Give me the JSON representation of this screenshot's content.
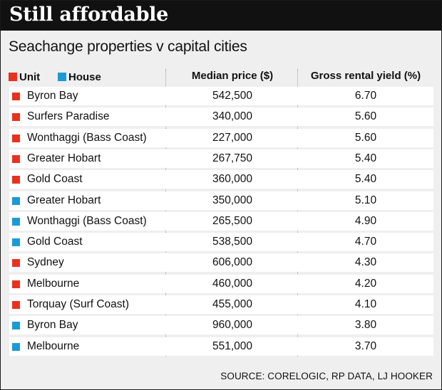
{
  "title": "Still affordable",
  "subtitle": "Seachange properties v capital cities",
  "source": "SOURCE: CORELOGIC, RP DATA, LJ HOOKER",
  "colors": {
    "unit": "#e8321e",
    "house": "#1b9ad6",
    "banner": "#111111"
  },
  "chart_data": {
    "type": "table",
    "legend": [
      {
        "key": "unit",
        "label": "Unit"
      },
      {
        "key": "house",
        "label": "House"
      }
    ],
    "columns": [
      "Median price ($)",
      "Gross rental yield (%)"
    ],
    "rows": [
      {
        "type": "unit",
        "location": "Byron Bay",
        "median_price": "542,500",
        "gross_rental_yield": "6.70"
      },
      {
        "type": "unit",
        "location": "Surfers Paradise",
        "median_price": "340,000",
        "gross_rental_yield": "5.60"
      },
      {
        "type": "unit",
        "location": "Wonthaggi (Bass Coast)",
        "median_price": "227,000",
        "gross_rental_yield": "5.60"
      },
      {
        "type": "unit",
        "location": "Greater Hobart",
        "median_price": "267,750",
        "gross_rental_yield": "5.40"
      },
      {
        "type": "unit",
        "location": "Gold Coast",
        "median_price": "360,000",
        "gross_rental_yield": "5.40"
      },
      {
        "type": "house",
        "location": "Greater Hobart",
        "median_price": "350,000",
        "gross_rental_yield": "5.10"
      },
      {
        "type": "house",
        "location": "Wonthaggi (Bass Coast)",
        "median_price": "265,500",
        "gross_rental_yield": "4.90"
      },
      {
        "type": "house",
        "location": "Gold Coast",
        "median_price": "538,500",
        "gross_rental_yield": "4.70"
      },
      {
        "type": "unit",
        "location": "Sydney",
        "median_price": "606,000",
        "gross_rental_yield": "4.30"
      },
      {
        "type": "unit",
        "location": "Melbourne",
        "median_price": "460,000",
        "gross_rental_yield": "4.20"
      },
      {
        "type": "unit",
        "location": "Torquay (Surf Coast)",
        "median_price": "455,000",
        "gross_rental_yield": "4.10"
      },
      {
        "type": "house",
        "location": "Byron Bay",
        "median_price": "960,000",
        "gross_rental_yield": "3.80"
      },
      {
        "type": "house",
        "location": "Melbourne",
        "median_price": "551,000",
        "gross_rental_yield": "3.70"
      }
    ]
  }
}
